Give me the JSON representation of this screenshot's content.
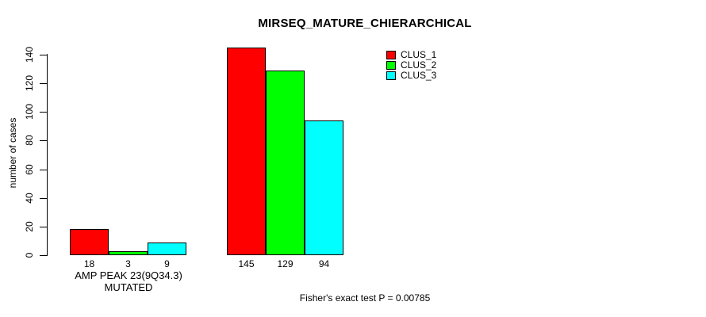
{
  "chart_data": {
    "type": "bar",
    "title": "MIRSEQ_MATURE_CHIERARCHICAL",
    "xlabel": "",
    "ylabel": "number of cases",
    "ylim": [
      0,
      140
    ],
    "yticks": [
      0,
      20,
      40,
      60,
      80,
      100,
      120,
      140
    ],
    "categories": [
      "AMP PEAK 23(9Q34.3) MUTATED",
      ""
    ],
    "series": [
      {
        "name": "CLUS_1",
        "color": "#FF0000",
        "values": [
          18,
          145
        ]
      },
      {
        "name": "CLUS_2",
        "color": "#00FF00",
        "values": [
          3,
          129
        ]
      },
      {
        "name": "CLUS_3",
        "color": "#00FFFF",
        "values": [
          9,
          94
        ]
      }
    ],
    "bar_value_labels": [
      [
        "18",
        "3",
        "9"
      ],
      [
        "145",
        "129",
        "94"
      ]
    ],
    "legend_position": "top-right",
    "grid": false,
    "annotation": "Fisher's exact test P = 0.00785"
  },
  "colors": {
    "background": "#FFFFFF",
    "axis": "#000000",
    "text": "#000000"
  }
}
